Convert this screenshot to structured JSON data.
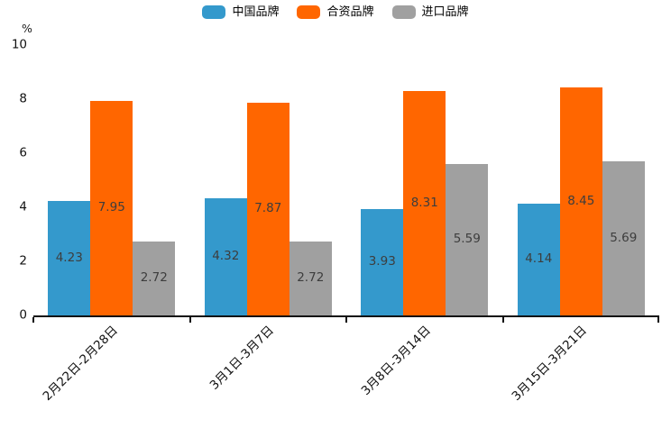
{
  "chart_data": {
    "type": "bar",
    "title": "",
    "ylabel": "%",
    "xlabel": "",
    "ylim": [
      0,
      10
    ],
    "yticks": [
      0,
      2,
      4,
      6,
      8,
      10
    ],
    "grid": false,
    "legend_position": "top",
    "value_labels": true,
    "categories": [
      "2月22日-2月28日",
      "3月1日-3月7日",
      "3月8日-3月14日",
      "3月15日-3月21日"
    ],
    "series": [
      {
        "name": "中国品牌",
        "color": "#3499CC",
        "values": [
          4.23,
          4.32,
          3.93,
          4.14
        ]
      },
      {
        "name": "合资品牌",
        "color": "#FF6600",
        "values": [
          7.95,
          7.87,
          8.31,
          8.45
        ]
      },
      {
        "name": "进口品牌",
        "color": "#A0A0A0",
        "values": [
          2.72,
          2.72,
          5.59,
          5.69
        ]
      }
    ]
  },
  "styles": {
    "axis_color": "#111111",
    "value_label_color": "#3d3d3d",
    "legend_text_color": "#000000"
  }
}
